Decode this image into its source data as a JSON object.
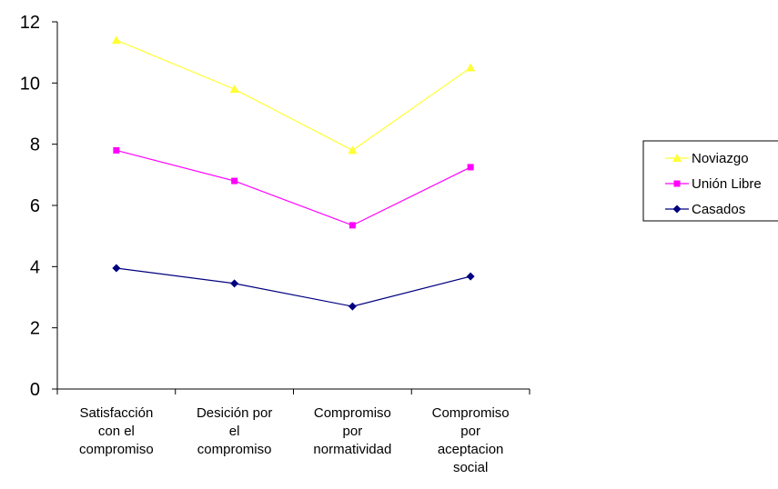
{
  "chart_data": {
    "type": "line",
    "categories": [
      [
        "Satisfacción",
        "con el",
        "compromiso"
      ],
      [
        "Desición por",
        "el",
        "compromiso"
      ],
      [
        "Compromiso",
        "por",
        "normatividad"
      ],
      [
        "Compromiso",
        "por",
        "aceptacion",
        "social"
      ]
    ],
    "yticks": [
      "0",
      "2",
      "4",
      "6",
      "8",
      "10",
      "12"
    ],
    "ylim": [
      0,
      12
    ],
    "grid": false,
    "legend_position": "right",
    "series": [
      {
        "name": "Noviazgo",
        "color": "#ffff33",
        "marker": "triangle",
        "values": [
          11.4,
          9.8,
          7.8,
          10.5
        ]
      },
      {
        "name": "Unión Libre",
        "color": "#ff00ff",
        "marker": "square",
        "values": [
          7.8,
          6.8,
          5.35,
          7.25
        ]
      },
      {
        "name": "Casados",
        "color": "#000080",
        "marker": "diamond",
        "values": [
          3.95,
          3.45,
          2.7,
          3.68
        ]
      }
    ]
  }
}
